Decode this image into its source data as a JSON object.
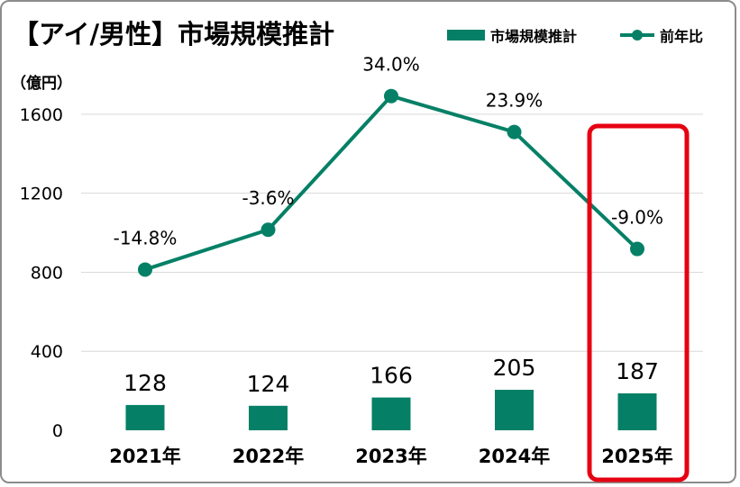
{
  "chart_data": {
    "type": "bar+line",
    "title": "【アイ/男性】市場規模推計",
    "unit_label": "（億円）",
    "categories": [
      "2021年",
      "2022年",
      "2023年",
      "2024年",
      "2025年"
    ],
    "series": [
      {
        "name": "市場規模推計",
        "type": "bar",
        "axis": "left",
        "values": [
          128,
          124,
          166,
          205,
          187
        ],
        "labels": [
          "128",
          "124",
          "166",
          "205",
          "187"
        ]
      },
      {
        "name": "前年比",
        "type": "line",
        "axis": "secondary",
        "values": [
          -14.8,
          -3.6,
          34.0,
          23.9,
          -9.0
        ],
        "labels": [
          "-14.8%",
          "-3.6%",
          "34.0%",
          "23.9%",
          "-9.0%"
        ]
      }
    ],
    "y_ticks": [
      "0",
      "400",
      "800",
      "1200",
      "1600"
    ],
    "ylim": [
      0,
      1800
    ],
    "highlight_category": "2025年",
    "colors": {
      "bar": "#058066",
      "line": "#058066",
      "highlight": "#e60012"
    },
    "legend_position": "top-right"
  }
}
